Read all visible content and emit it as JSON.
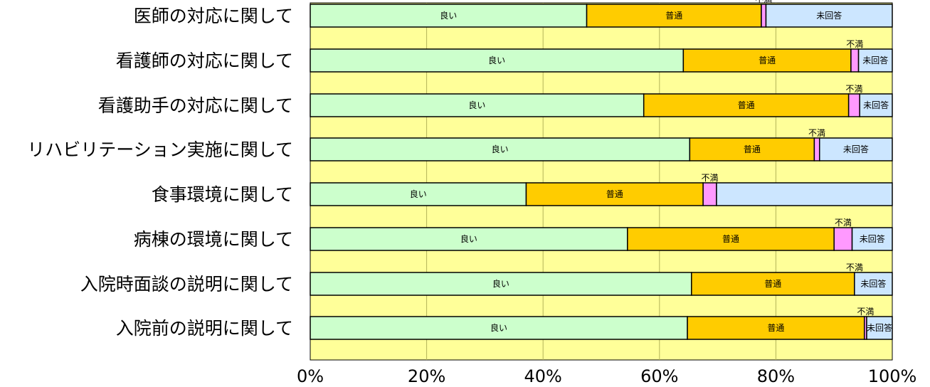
{
  "chart_data": {
    "type": "bar",
    "orientation": "horizontal",
    "stacked": true,
    "normalized_percent": true,
    "categories": [
      "医師の対応に関して",
      "看護師の対応に関して",
      "看護助手の対応に関して",
      "リハビリテーション実施に関して",
      "食事環境に関して",
      "病棟の環境に関して",
      "入院時面談の説明に関して",
      "入院前の説明に関して"
    ],
    "series": [
      {
        "name": "良い",
        "color": "#ccffcc",
        "values": [
          47.5,
          64.1,
          57.3,
          65.2,
          37.1,
          54.5,
          65.5,
          64.8
        ]
      },
      {
        "name": "普通",
        "color": "#ffcc00",
        "values": [
          30.0,
          28.8,
          35.2,
          21.4,
          30.4,
          35.5,
          28.0,
          30.4
        ]
      },
      {
        "name": "不満",
        "color": "#ff99ff",
        "values": [
          0.8,
          1.3,
          1.9,
          0.9,
          2.3,
          3.1,
          0.0,
          0.4
        ]
      },
      {
        "name": "未回答",
        "color": "#cce6ff",
        "values": [
          21.7,
          5.8,
          5.6,
          12.5,
          30.2,
          6.9,
          6.5,
          4.4
        ]
      }
    ],
    "segment_labels": [
      [
        "良い",
        "普通",
        "不満",
        "未回答"
      ],
      [
        "良い",
        "普通",
        "不満",
        "未回答"
      ],
      [
        "良い",
        "普通",
        "不満",
        "未回答"
      ],
      [
        "良い",
        "普通",
        "不満",
        "未回答"
      ],
      [
        "良い",
        "普通",
        "不満",
        ""
      ],
      [
        "良い",
        "普通",
        "不満",
        "未回答"
      ],
      [
        "良い",
        "普通",
        "不満",
        "未回答"
      ],
      [
        "良い",
        "普通",
        "不満",
        "未回答"
      ]
    ],
    "xlim": [
      0,
      100
    ],
    "xticks": [
      "0%",
      "20%",
      "40%",
      "60%",
      "80%",
      "100%"
    ],
    "title": "",
    "xlabel": "",
    "ylabel": "",
    "grid": "vertical",
    "plot_background": "#ffff99",
    "legend": "none"
  }
}
